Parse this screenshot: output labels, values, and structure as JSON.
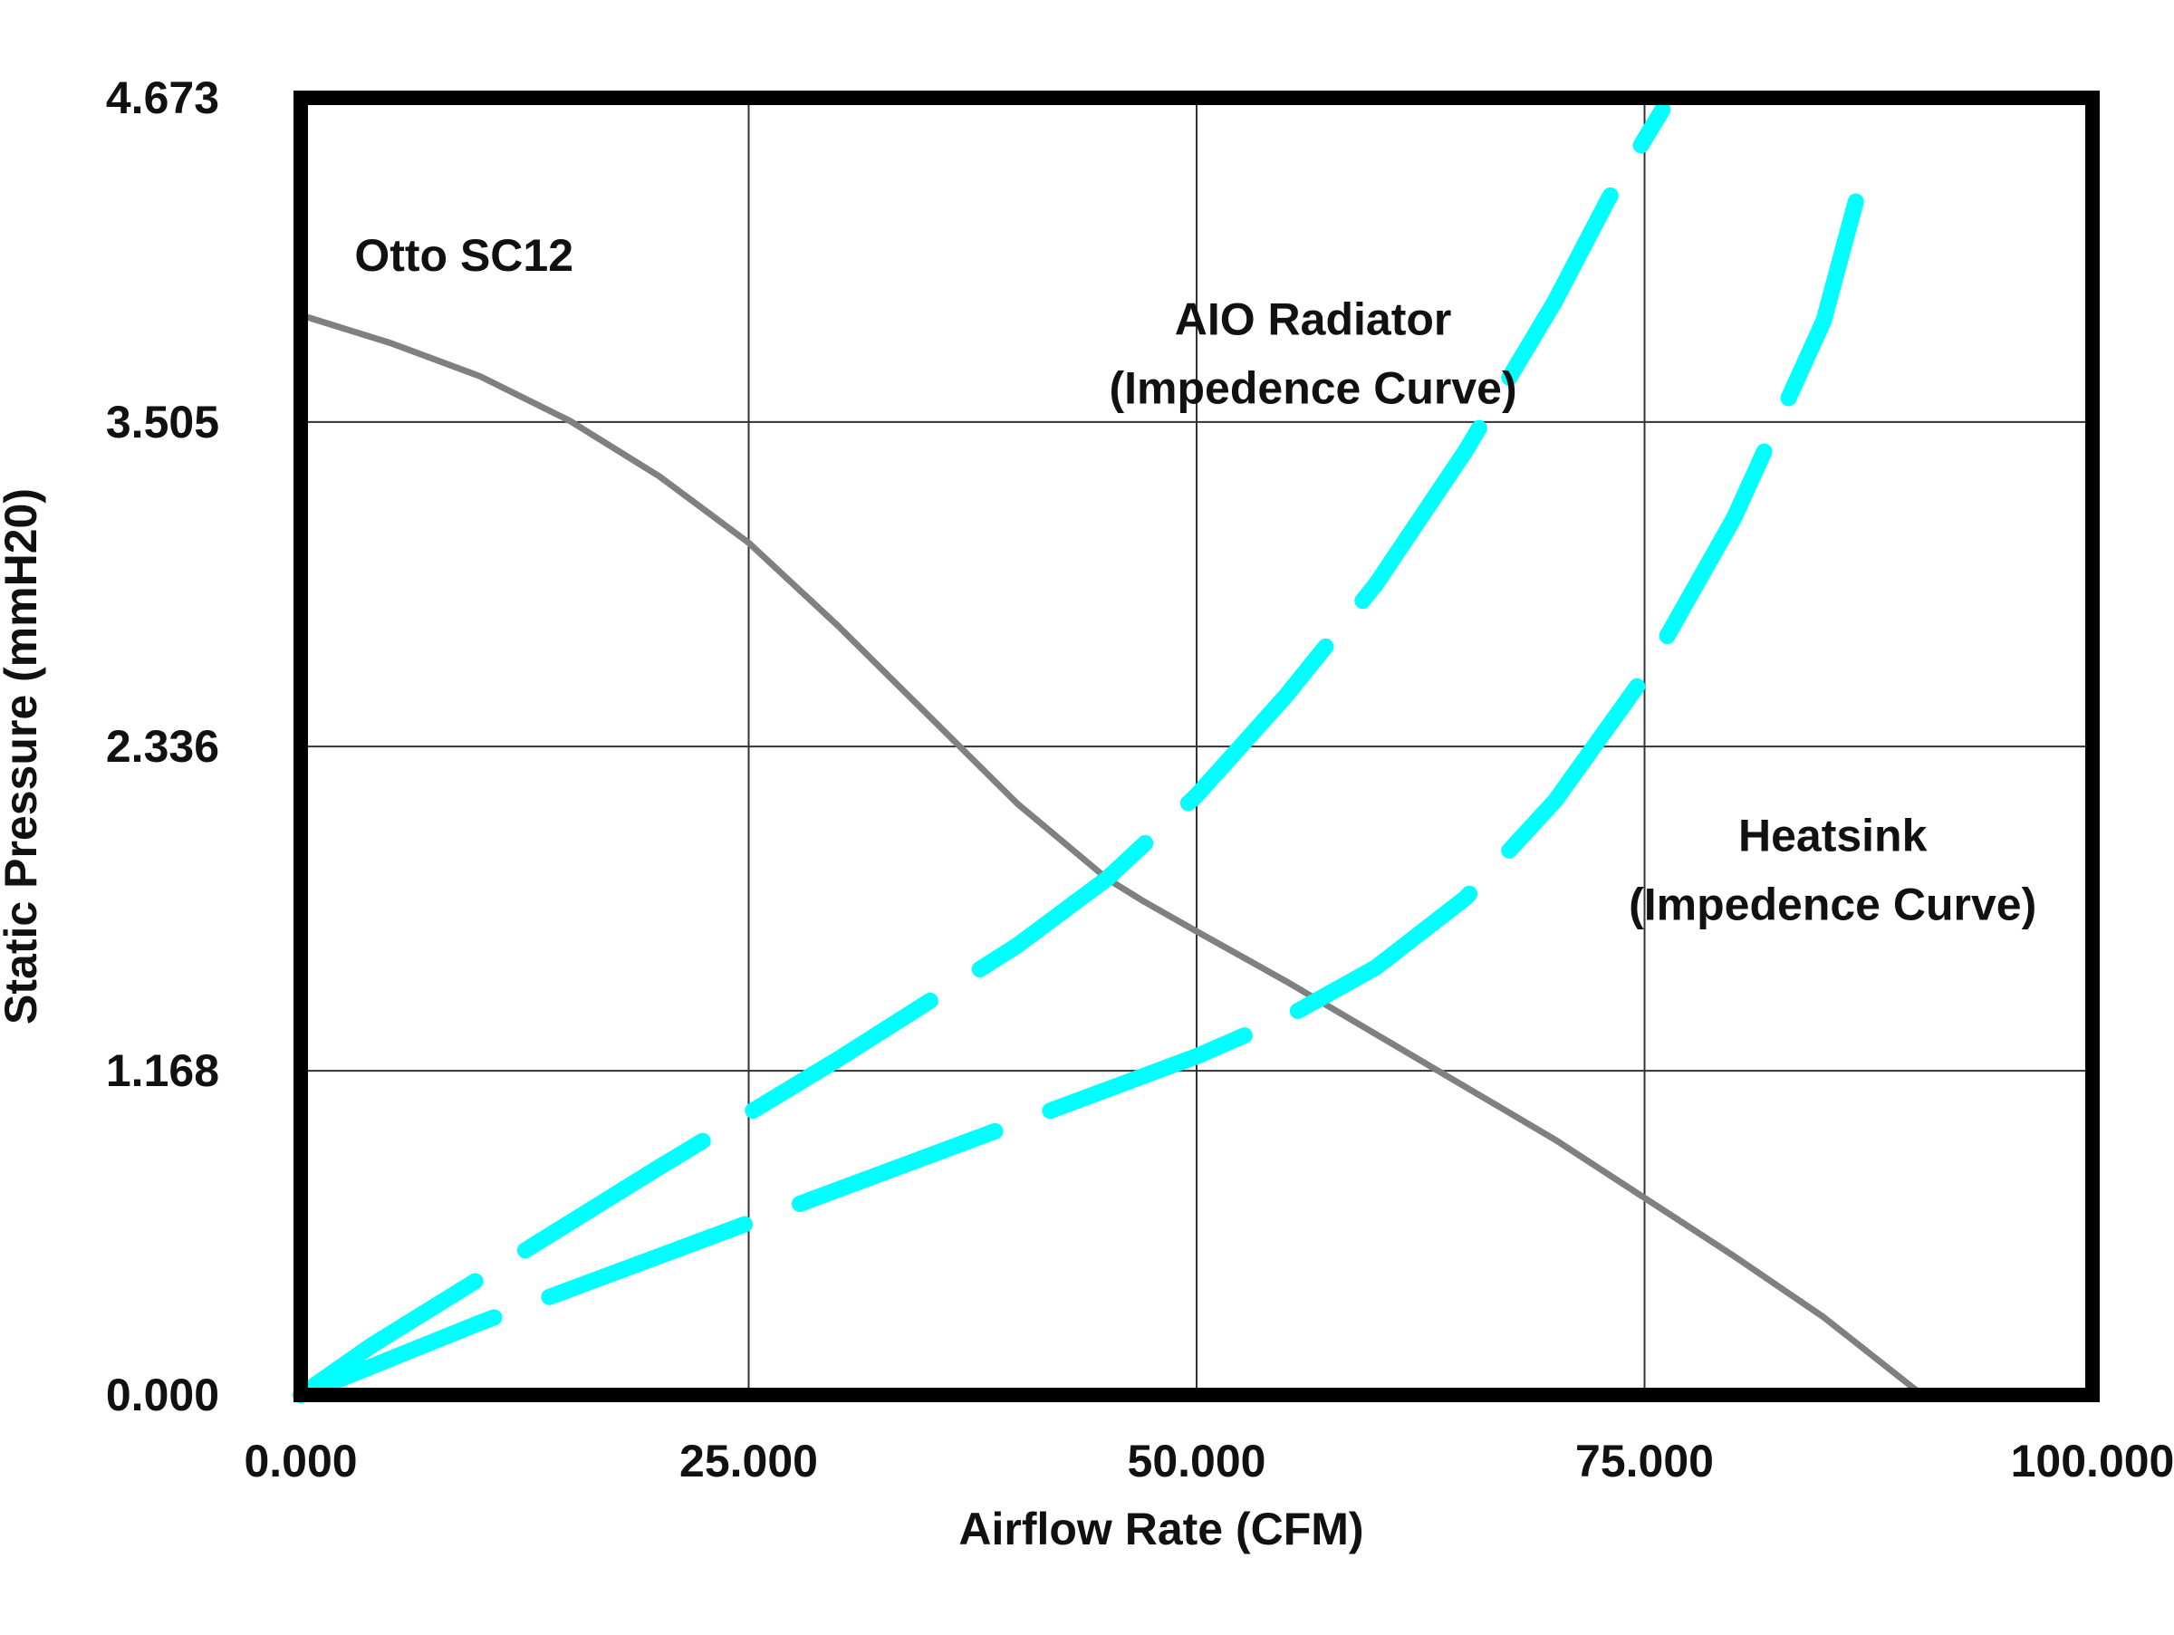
{
  "chart_data": {
    "type": "line",
    "title": "",
    "xlabel": "Airflow Rate (CFM)",
    "ylabel": "Static Pressure (mmH20)",
    "xlim": [
      0,
      100
    ],
    "ylim": [
      0,
      4.673
    ],
    "x_ticks": [
      0,
      25,
      50,
      75,
      100
    ],
    "x_tick_labels": [
      "0.000",
      "25.000",
      "50.000",
      "75.000",
      "100.000"
    ],
    "y_ticks": [
      0,
      1.168,
      2.336,
      3.505,
      4.673
    ],
    "y_tick_labels": [
      "0.000",
      "1.168",
      "2.336",
      "3.505",
      "4.673"
    ],
    "grid": true,
    "series": [
      {
        "name": "Otto SC12",
        "style": "solid",
        "color": "#808080",
        "x": [
          0,
          5,
          10,
          15,
          20,
          25,
          30,
          35,
          40,
          45,
          47,
          50,
          55,
          60,
          65,
          70,
          75,
          80,
          85,
          90.5
        ],
        "y": [
          3.89,
          3.79,
          3.67,
          3.51,
          3.31,
          3.07,
          2.77,
          2.45,
          2.13,
          1.86,
          1.78,
          1.67,
          1.49,
          1.3,
          1.11,
          0.92,
          0.71,
          0.5,
          0.28,
          0.0
        ]
      },
      {
        "name": "AIO Radiator (Impedence Curve)",
        "style": "dashed",
        "color": "#00ffff",
        "x": [
          0,
          4,
          10,
          20,
          30,
          40,
          45,
          50,
          55,
          60,
          65,
          70,
          73,
          76
        ],
        "y": [
          0,
          0.18,
          0.42,
          0.82,
          1.21,
          1.62,
          1.86,
          2.16,
          2.52,
          2.92,
          3.4,
          3.94,
          4.31,
          4.63
        ]
      },
      {
        "name": "Heatsink (Impedence Curve)",
        "style": "dashed",
        "color": "#00ffff",
        "x": [
          0,
          5,
          10,
          20,
          30,
          40,
          50,
          55,
          60,
          65,
          70,
          75,
          80,
          85,
          87
        ],
        "y": [
          0,
          0.13,
          0.26,
          0.5,
          0.74,
          0.98,
          1.22,
          1.36,
          1.54,
          1.79,
          2.14,
          2.59,
          3.16,
          3.87,
          4.35
        ]
      }
    ],
    "annotations": [
      {
        "text": "Otto SC12",
        "x": 3,
        "y": 4.05
      },
      {
        "lines": [
          "AIO Radiator",
          "(Impedence Curve)"
        ],
        "x": 56.5,
        "y": 3.82
      },
      {
        "lines": [
          "Heatsink",
          "(Impedence Curve)"
        ],
        "x": 85.5,
        "y": 1.96
      }
    ]
  }
}
